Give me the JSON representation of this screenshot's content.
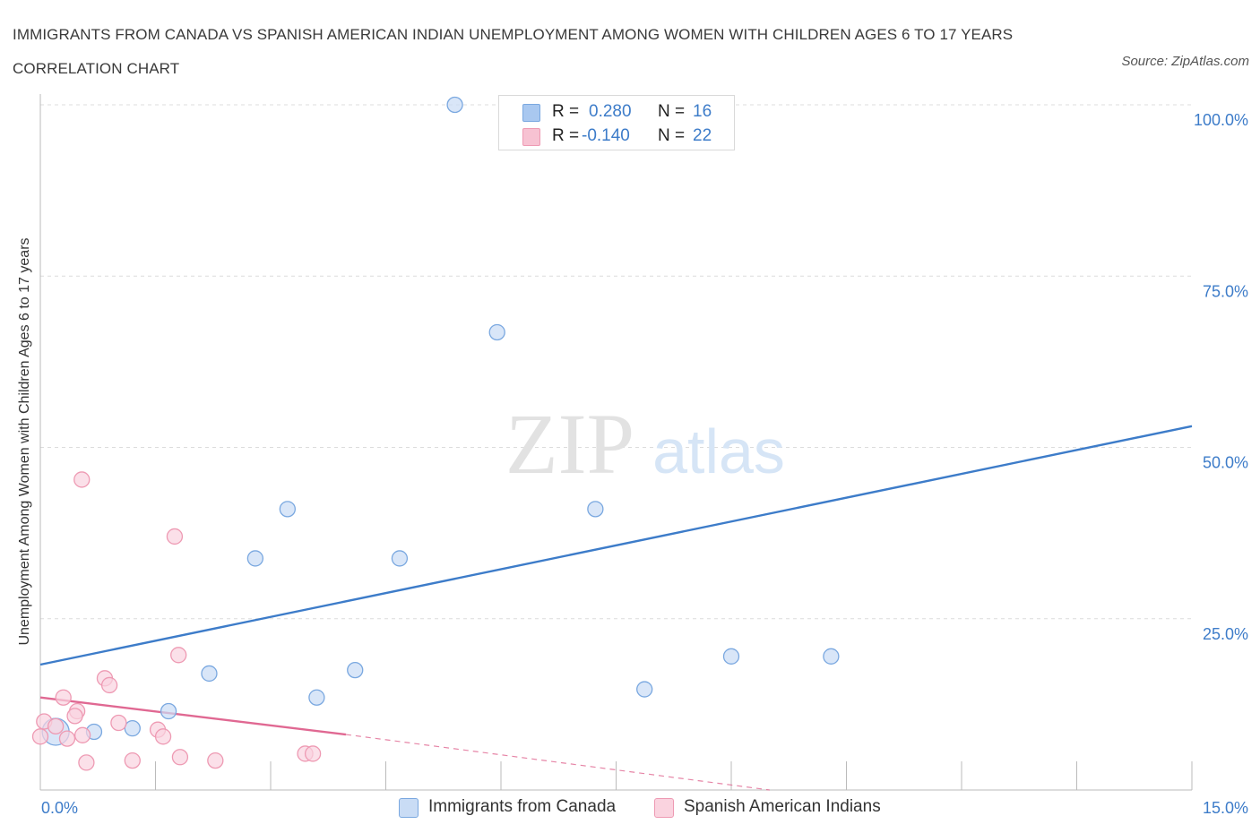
{
  "title": "IMMIGRANTS FROM CANADA VS SPANISH AMERICAN INDIAN UNEMPLOYMENT AMONG WOMEN WITH CHILDREN AGES 6 TO 17 YEARS CORRELATION CHART",
  "source": "Source: ZipAtlas.com",
  "watermark": {
    "zip": "ZIP",
    "atlas": "atlas"
  },
  "legend": [
    {
      "r_label": "R =",
      "r_value": "0.280",
      "n_label": "N =",
      "n_value": "16",
      "color": "#a9c8f0",
      "border": "#7aa8e0"
    },
    {
      "r_label": "R =",
      "r_value": "-0.140",
      "n_label": "N =",
      "n_value": "22",
      "color": "#f7c2d2",
      "border": "#ee9ab3"
    }
  ],
  "bottom_legend": [
    {
      "label": "Immigrants from Canada",
      "color": "#c9dcf5",
      "border": "#7aa8e0"
    },
    {
      "label": "Spanish American Indians",
      "color": "#fad3df",
      "border": "#ee9ab3"
    }
  ],
  "chart_data": {
    "type": "scatter",
    "title": "IMMIGRANTS FROM CANADA VS SPANISH AMERICAN INDIAN UNEMPLOYMENT AMONG WOMEN WITH CHILDREN AGES 6 TO 17 YEARS CORRELATION CHART",
    "xlabel": "",
    "ylabel": "Unemployment Among Women with Children Ages 6 to 17 years",
    "xlim": [
      0,
      15
    ],
    "ylim": [
      0,
      100
    ],
    "x_tick_labels": [
      "0.0%",
      "15.0%"
    ],
    "y_tick_labels": [
      "100.0%",
      "75.0%",
      "50.0%",
      "25.0%"
    ],
    "y_tick_values": [
      100,
      75,
      50,
      25
    ],
    "grid": true,
    "legend_position": "top-center",
    "series": [
      {
        "name": "Immigrants from Canada",
        "color": "#3d7cc9",
        "fill": "#c9dcf5",
        "points": [
          {
            "x": 5.4,
            "y": 100
          },
          {
            "x": 5.95,
            "y": 66.8
          },
          {
            "x": 3.22,
            "y": 41
          },
          {
            "x": 7.23,
            "y": 41
          },
          {
            "x": 2.8,
            "y": 33.8
          },
          {
            "x": 4.68,
            "y": 33.8
          },
          {
            "x": 9.0,
            "y": 19.5
          },
          {
            "x": 10.3,
            "y": 19.5
          },
          {
            "x": 2.2,
            "y": 17
          },
          {
            "x": 4.1,
            "y": 17.5
          },
          {
            "x": 7.87,
            "y": 14.7
          },
          {
            "x": 3.6,
            "y": 13.5
          },
          {
            "x": 1.67,
            "y": 11.5
          },
          {
            "x": 1.2,
            "y": 9
          },
          {
            "x": 0.7,
            "y": 8.5
          },
          {
            "x": 0.2,
            "y": 8.5
          }
        ],
        "trend": {
          "x0": 0,
          "y0": 18.3,
          "x1": 15,
          "y1": 53.1
        }
      },
      {
        "name": "Spanish American Indians",
        "color": "#e06892",
        "fill": "#fad3df",
        "points": [
          {
            "x": 0.54,
            "y": 45.3
          },
          {
            "x": 1.75,
            "y": 37
          },
          {
            "x": 1.8,
            "y": 19.7
          },
          {
            "x": 0.84,
            "y": 16.3
          },
          {
            "x": 0.9,
            "y": 15.3
          },
          {
            "x": 0.3,
            "y": 13.5
          },
          {
            "x": 0.48,
            "y": 11.5
          },
          {
            "x": 0.45,
            "y": 10.8
          },
          {
            "x": 0.05,
            "y": 10
          },
          {
            "x": 0.2,
            "y": 9.3
          },
          {
            "x": 1.02,
            "y": 9.8
          },
          {
            "x": 1.53,
            "y": 8.8
          },
          {
            "x": 1.6,
            "y": 7.8
          },
          {
            "x": 0.35,
            "y": 7.5
          },
          {
            "x": 0.0,
            "y": 7.8
          },
          {
            "x": 0.6,
            "y": 4
          },
          {
            "x": 1.2,
            "y": 4.3
          },
          {
            "x": 1.82,
            "y": 4.8
          },
          {
            "x": 2.28,
            "y": 4.3
          },
          {
            "x": 3.45,
            "y": 5.3
          },
          {
            "x": 3.55,
            "y": 5.3
          },
          {
            "x": 0.55,
            "y": 8
          }
        ],
        "trend": {
          "x0": 0,
          "y0": 13.5,
          "x1": 3.98,
          "y1": 8.1
        },
        "trend_dashed": {
          "x0": 3.98,
          "y0": 8.1,
          "x1": 9.5,
          "y1": 0
        }
      }
    ]
  }
}
